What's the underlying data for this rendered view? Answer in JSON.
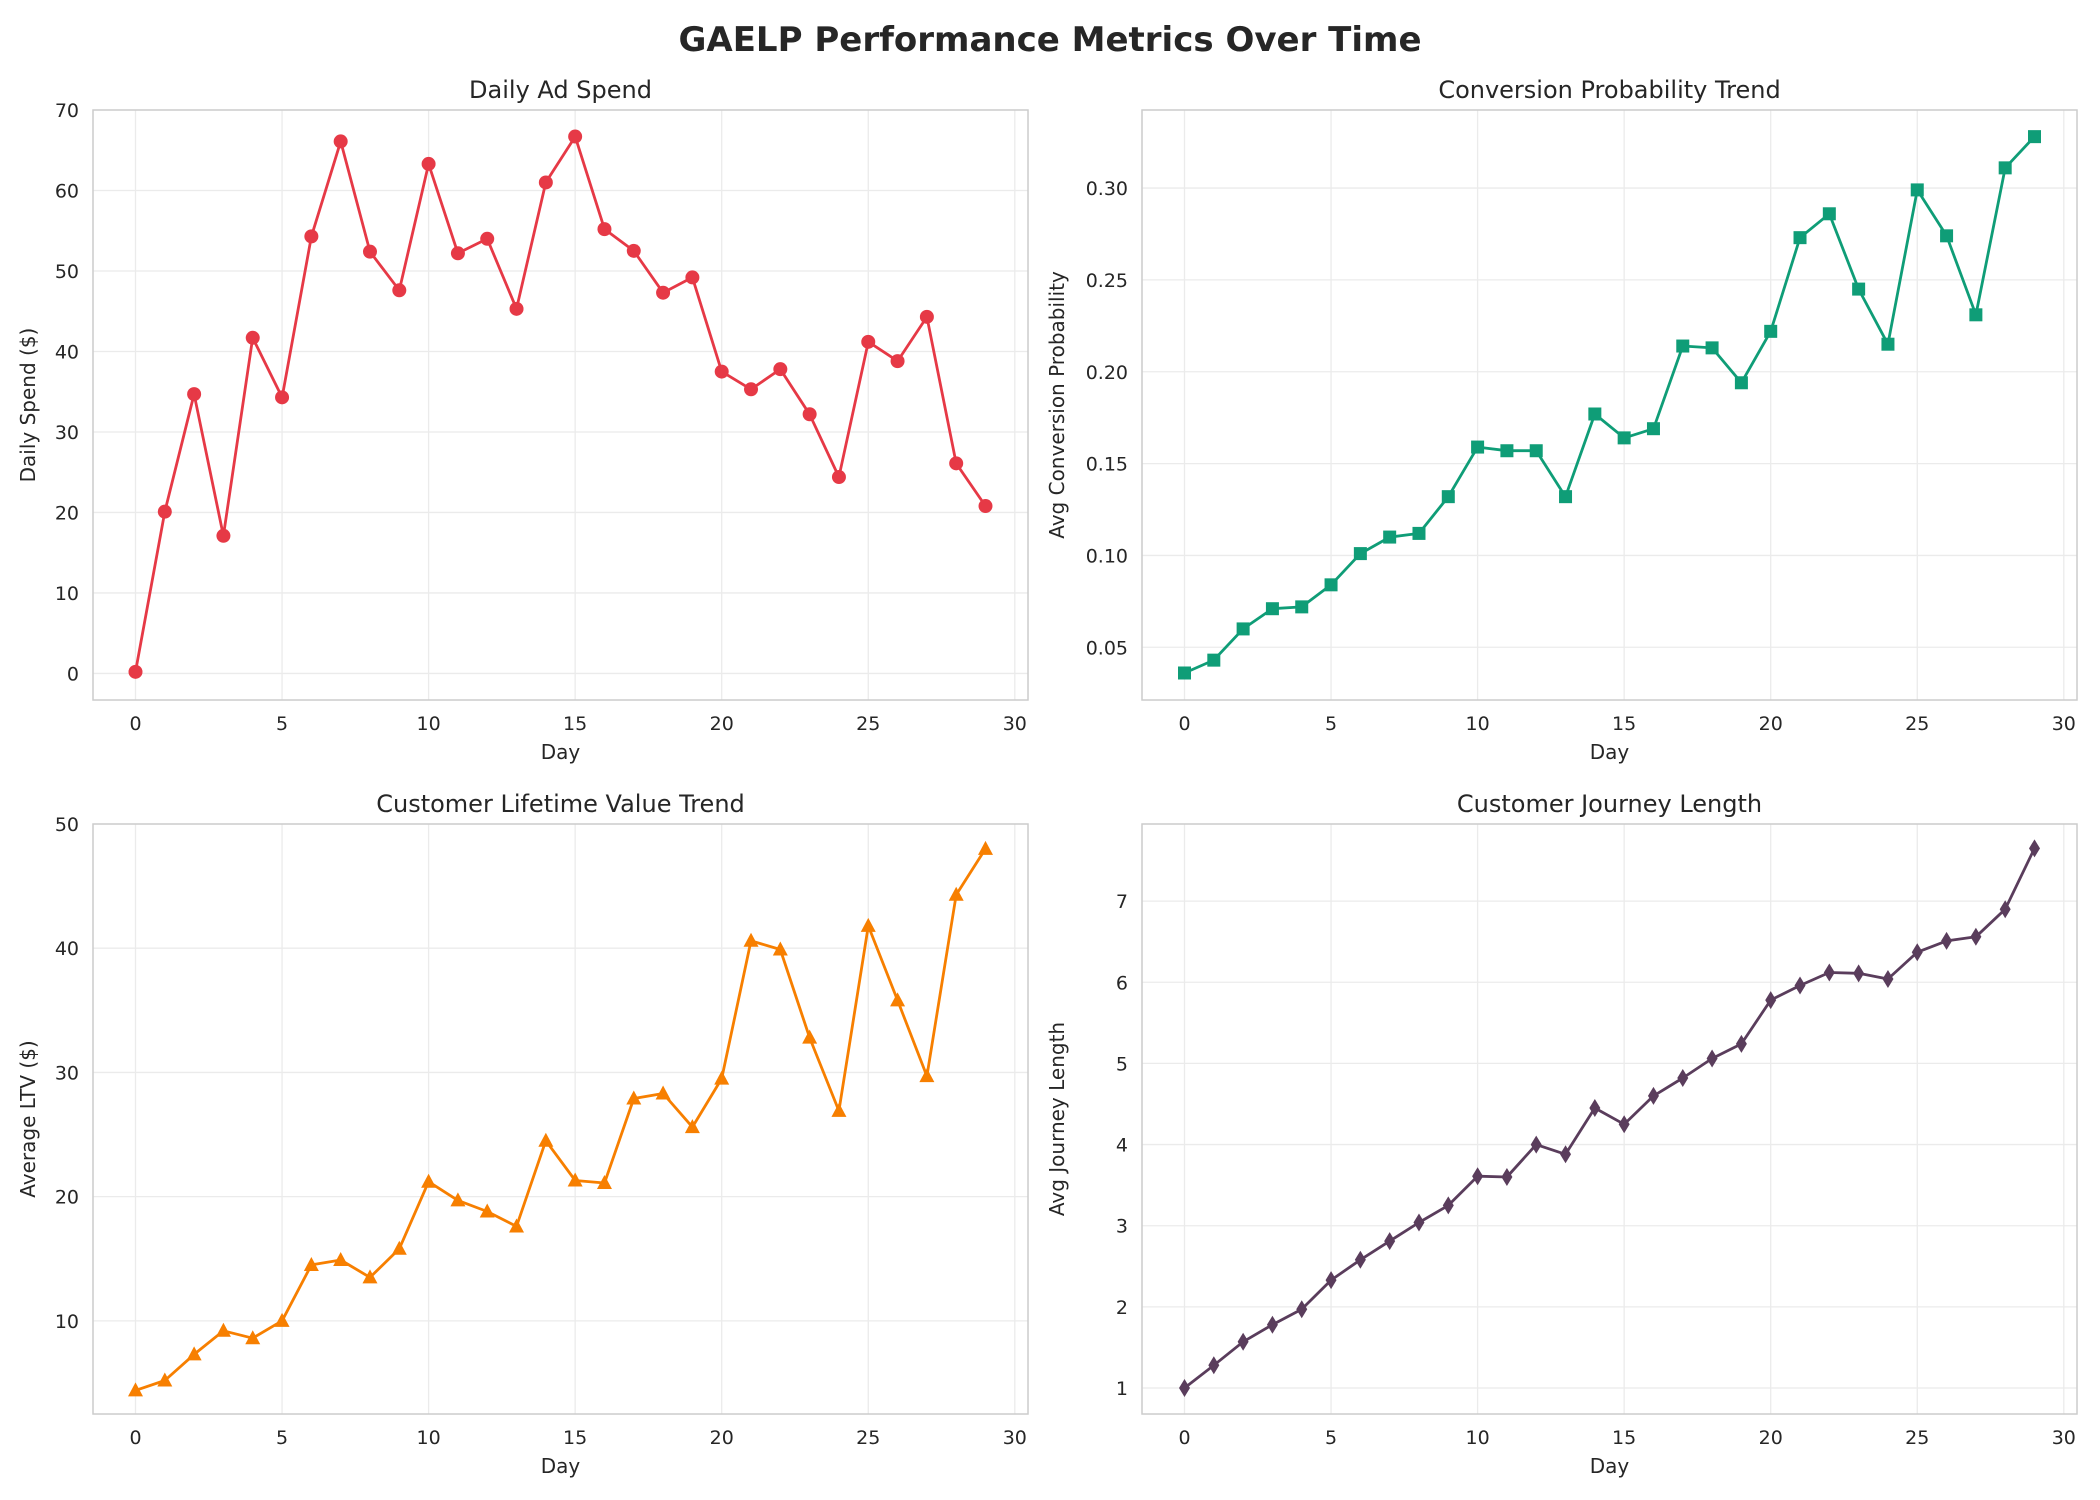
{
  "suptitle": "GAELP Performance Metrics Over Time",
  "chart_data": [
    {
      "type": "line",
      "title": "Daily Ad Spend",
      "xlabel": "Day",
      "ylabel": "Daily Spend ($)",
      "color": "#e63946",
      "marker": "circle",
      "xlim": [
        -1.45,
        30.45
      ],
      "ylim": [
        -3.3,
        70
      ],
      "xticks": [
        0,
        5,
        10,
        15,
        20,
        25,
        30
      ],
      "yticks": [
        0,
        10,
        20,
        30,
        40,
        50,
        60,
        70
      ],
      "ytick_labels": [
        "0",
        "10",
        "20",
        "30",
        "40",
        "50",
        "60",
        "70"
      ],
      "grid": true,
      "x": [
        0,
        1,
        2,
        3,
        4,
        5,
        6,
        7,
        8,
        9,
        10,
        11,
        12,
        13,
        14,
        15,
        16,
        17,
        18,
        19,
        20,
        21,
        22,
        23,
        24,
        25,
        26,
        27,
        28,
        29
      ],
      "y": [
        0.2,
        20.1,
        34.7,
        17.1,
        41.7,
        34.3,
        54.3,
        66.1,
        52.4,
        47.6,
        63.3,
        52.2,
        54.0,
        45.3,
        61.0,
        66.7,
        55.2,
        52.5,
        47.3,
        49.2,
        37.5,
        35.3,
        37.8,
        32.2,
        24.4,
        41.2,
        38.8,
        44.3,
        26.1,
        20.8
      ]
    },
    {
      "type": "line",
      "title": "Conversion Probability Trend",
      "xlabel": "Day",
      "ylabel": "Avg Conversion Probability",
      "color": "#0f9d77",
      "marker": "square",
      "xlim": [
        -1.45,
        30.45
      ],
      "ylim": [
        0.0213,
        0.3425
      ],
      "xticks": [
        0,
        5,
        10,
        15,
        20,
        25,
        30
      ],
      "yticks": [
        0.05,
        0.1,
        0.15,
        0.2,
        0.25,
        0.3
      ],
      "ytick_labels": [
        "0.05",
        "0.10",
        "0.15",
        "0.20",
        "0.25",
        "0.30"
      ],
      "grid": true,
      "x": [
        0,
        1,
        2,
        3,
        4,
        5,
        6,
        7,
        8,
        9,
        10,
        11,
        12,
        13,
        14,
        15,
        16,
        17,
        18,
        19,
        20,
        21,
        22,
        23,
        24,
        25,
        26,
        27,
        28,
        29
      ],
      "y": [
        0.036,
        0.043,
        0.06,
        0.071,
        0.072,
        0.084,
        0.101,
        0.11,
        0.112,
        0.132,
        0.159,
        0.157,
        0.157,
        0.132,
        0.177,
        0.164,
        0.169,
        0.214,
        0.213,
        0.194,
        0.222,
        0.273,
        0.286,
        0.245,
        0.215,
        0.299,
        0.274,
        0.231,
        0.311,
        0.328
      ]
    },
    {
      "type": "line",
      "title": "Customer Lifetime Value Trend",
      "xlabel": "Day",
      "ylabel": "Average LTV ($)",
      "color": "#f77f00",
      "marker": "triangle",
      "xlim": [
        -1.45,
        30.45
      ],
      "ylim": [
        2.5,
        50
      ],
      "xticks": [
        0,
        5,
        10,
        15,
        20,
        25,
        30
      ],
      "yticks": [
        10,
        20,
        30,
        40,
        50
      ],
      "ytick_labels": [
        "10",
        "20",
        "30",
        "40",
        "50"
      ],
      "grid": true,
      "x": [
        0,
        1,
        2,
        3,
        4,
        5,
        6,
        7,
        8,
        9,
        10,
        11,
        12,
        13,
        14,
        15,
        16,
        17,
        18,
        19,
        20,
        21,
        22,
        23,
        24,
        25,
        26,
        27,
        28,
        29
      ],
      "y": [
        4.4,
        5.2,
        7.3,
        9.2,
        8.6,
        10.0,
        14.5,
        14.9,
        13.5,
        15.8,
        21.2,
        19.7,
        18.8,
        17.6,
        24.5,
        21.3,
        21.1,
        27.9,
        28.3,
        25.6,
        29.5,
        40.6,
        39.9,
        32.8,
        26.9,
        41.8,
        35.8,
        29.7,
        44.3,
        48.0
      ]
    },
    {
      "type": "line",
      "title": "Customer Journey Length",
      "xlabel": "Day",
      "ylabel": "Avg Journey Length",
      "color": "#5a3d5c",
      "marker": "diamond",
      "xlim": [
        -1.45,
        30.45
      ],
      "ylim": [
        0.68,
        7.95
      ],
      "xticks": [
        0,
        5,
        10,
        15,
        20,
        25,
        30
      ],
      "yticks": [
        1,
        2,
        3,
        4,
        5,
        6,
        7
      ],
      "ytick_labels": [
        "1",
        "2",
        "3",
        "4",
        "5",
        "6",
        "7"
      ],
      "grid": true,
      "x": [
        0,
        1,
        2,
        3,
        4,
        5,
        6,
        7,
        8,
        9,
        10,
        11,
        12,
        13,
        14,
        15,
        16,
        17,
        18,
        19,
        20,
        21,
        22,
        23,
        24,
        25,
        26,
        27,
        28,
        29
      ],
      "y": [
        1.0,
        1.28,
        1.57,
        1.78,
        1.97,
        2.33,
        2.58,
        2.81,
        3.04,
        3.25,
        3.61,
        3.6,
        4.0,
        3.88,
        4.45,
        4.25,
        4.6,
        4.82,
        5.06,
        5.24,
        5.78,
        5.96,
        6.12,
        6.11,
        6.04,
        6.37,
        6.51,
        6.56,
        6.9,
        7.65
      ]
    }
  ]
}
